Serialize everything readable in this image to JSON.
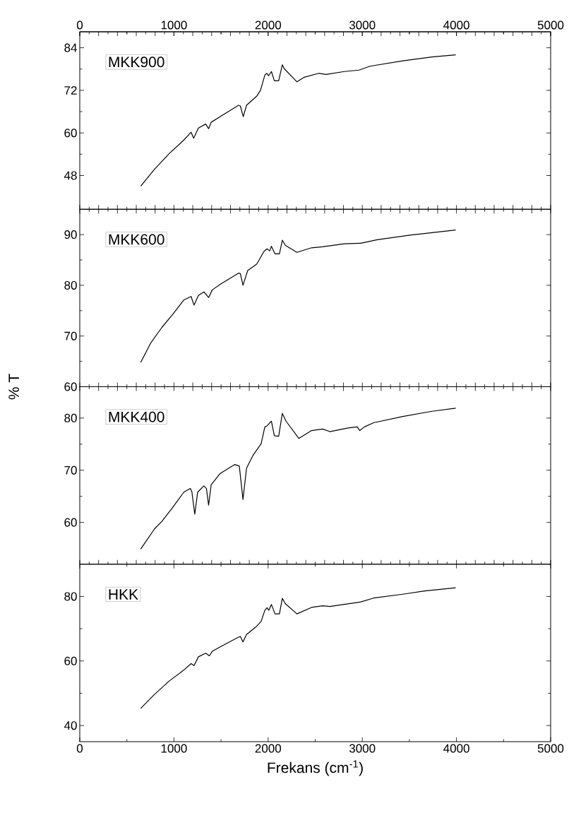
{
  "chart_data": [
    {
      "type": "line",
      "annotations": [
        "MKK900"
      ],
      "xlim": [
        0,
        5000
      ],
      "x2lim": [
        0,
        5000
      ],
      "x2ticks": [
        0,
        1000,
        2000,
        3000,
        4000,
        5000
      ],
      "ylim": [
        38.5,
        88.5
      ],
      "yticks": [
        48,
        60,
        72,
        84
      ],
      "series": [
        {
          "color": "#000000",
          "x": [
            647,
            795,
            950,
            1105,
            1182,
            1209,
            1260,
            1337,
            1368,
            1395,
            1492,
            1686,
            1705,
            1736,
            1771,
            1880,
            1919,
            1965,
            1988,
            2004,
            2035,
            2066,
            2112,
            2151,
            2171,
            2306,
            2384,
            2539,
            2616,
            2810,
            2965,
            3081,
            3430,
            3740,
            3992
          ],
          "values": [
            45.0,
            49.8,
            54.2,
            58.0,
            60.2,
            58.5,
            61.4,
            62.5,
            61.2,
            63.0,
            64.6,
            67.8,
            67.6,
            64.6,
            67.8,
            70.4,
            72.0,
            76.3,
            76.8,
            76.1,
            77.3,
            74.7,
            74.7,
            79.2,
            78.1,
            74.4,
            75.7,
            76.8,
            76.5,
            77.3,
            77.7,
            78.8,
            80.3,
            81.4,
            82.0
          ]
        }
      ]
    },
    {
      "type": "line",
      "ylabel": "% T",
      "annotations": [
        "MKK600"
      ],
      "xlim": [
        0,
        5000
      ],
      "tick_labels": "y",
      "ylim": [
        60,
        95
      ],
      "yticks": [
        60,
        70,
        80,
        90
      ],
      "series": [
        {
          "color": "#000000",
          "x": [
            647,
            756,
            872,
            988,
            1105,
            1182,
            1213,
            1260,
            1318,
            1368,
            1407,
            1492,
            1686,
            1705,
            1733,
            1783,
            1880,
            1957,
            1988,
            2016,
            2035,
            2074,
            2120,
            2151,
            2182,
            2306,
            2461,
            2578,
            2810,
            2984,
            3159,
            3508,
            3992
          ],
          "values": [
            64.8,
            68.7,
            71.7,
            74.3,
            77.1,
            77.8,
            76.1,
            78.0,
            78.7,
            77.6,
            79.1,
            80.2,
            82.4,
            82.3,
            80.0,
            82.9,
            84.2,
            86.7,
            87.2,
            86.8,
            87.7,
            86.2,
            86.2,
            88.9,
            87.9,
            86.5,
            87.4,
            87.6,
            88.2,
            88.3,
            89.0,
            89.9,
            90.9
          ]
        }
      ]
    },
    {
      "type": "line",
      "annotations": [
        "MKK400"
      ],
      "xlim": [
        0,
        5000
      ],
      "tick_labels": "y",
      "ylim": [
        52,
        86
      ],
      "yticks": [
        60,
        70,
        80
      ],
      "series": [
        {
          "color": "#000000",
          "x": [
            647,
            795,
            872,
            988,
            1105,
            1174,
            1190,
            1221,
            1252,
            1318,
            1345,
            1368,
            1395,
            1492,
            1647,
            1694,
            1733,
            1771,
            1841,
            1926,
            1965,
            1988,
            2035,
            2066,
            2112,
            2151,
            2190,
            2326,
            2461,
            2578,
            2655,
            2849,
            2946,
            2973,
            3023,
            3120,
            3430,
            3740,
            3992
          ],
          "values": [
            54.9,
            58.8,
            60.2,
            62.9,
            65.8,
            66.5,
            65.9,
            61.6,
            65.8,
            67.0,
            66.5,
            63.3,
            67.2,
            69.4,
            71.1,
            70.8,
            64.4,
            70.4,
            72.9,
            75.1,
            78.3,
            78.5,
            79.4,
            76.6,
            76.5,
            80.9,
            79.4,
            76.1,
            77.6,
            77.9,
            77.4,
            78.1,
            78.3,
            77.6,
            78.3,
            79.1,
            80.3,
            81.3,
            81.9
          ]
        }
      ]
    },
    {
      "type": "line",
      "xlabel": "Frekans (cm$^{-1}$)",
      "annotations": [
        "HKK"
      ],
      "xlim": [
        0,
        5000
      ],
      "xticks": [
        0,
        1000,
        2000,
        3000,
        4000,
        5000
      ],
      "ylim": [
        35,
        90
      ],
      "yticks": [
        40,
        60,
        80
      ],
      "series": [
        {
          "color": "#000000",
          "x": [
            647,
            795,
            950,
            1105,
            1182,
            1213,
            1260,
            1337,
            1376,
            1407,
            1492,
            1686,
            1705,
            1733,
            1771,
            1880,
            1926,
            1965,
            1988,
            2008,
            2035,
            2074,
            2120,
            2151,
            2182,
            2306,
            2461,
            2578,
            2655,
            2984,
            3120,
            3430,
            3663,
            3992
          ],
          "values": [
            45.3,
            49.7,
            53.8,
            57.2,
            59.2,
            58.6,
            61.3,
            62.4,
            61.6,
            63.0,
            64.4,
            67.4,
            67.6,
            65.9,
            68.2,
            70.8,
            72.3,
            75.7,
            76.5,
            75.7,
            77.5,
            74.6,
            74.6,
            79.4,
            77.8,
            74.6,
            76.6,
            77.1,
            76.9,
            78.3,
            79.5,
            80.7,
            81.7,
            82.7
          ]
        }
      ]
    }
  ]
}
